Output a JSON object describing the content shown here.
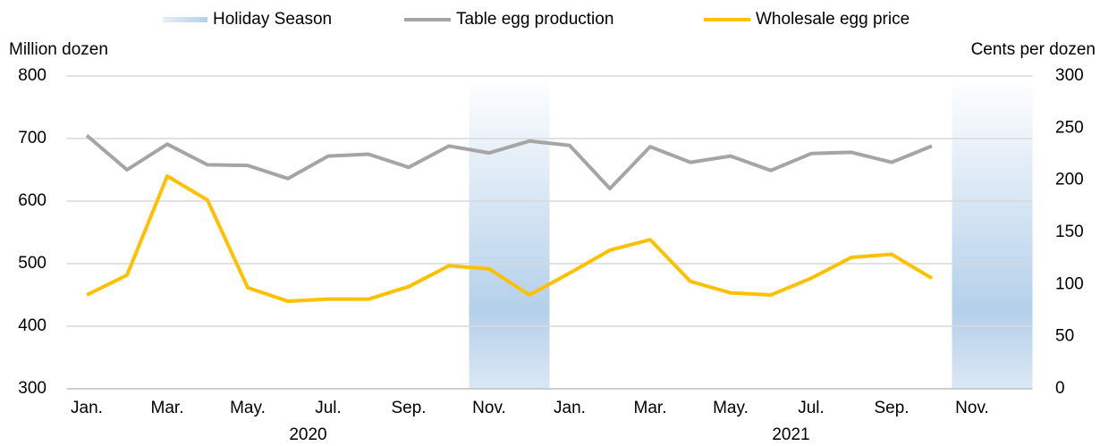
{
  "chart_data": {
    "type": "line",
    "y_label": "Million dozen",
    "y2_label": "Cents per dozen",
    "categories": [
      "Jan.",
      null,
      "Mar.",
      null,
      "May.",
      null,
      "Jul.",
      null,
      "Sep.",
      null,
      "Nov.",
      null,
      "Jan.",
      null,
      "Mar.",
      null,
      "May.",
      null,
      "Jul.",
      null,
      "Sep.",
      null,
      "Nov.",
      null
    ],
    "years": [
      "2020",
      "2021"
    ],
    "shade_name": "Holiday Season",
    "shaded_periods": [
      {
        "start": 10,
        "end": 11
      },
      {
        "start": 22,
        "end": 23
      }
    ],
    "series": [
      {
        "name": "Table egg production",
        "color": "#a5a5a5",
        "axis": "y",
        "values": [
          705,
          650,
          691,
          658,
          657,
          636,
          672,
          675,
          654,
          688,
          677,
          696,
          689,
          620,
          687,
          662,
          672,
          649,
          676,
          678,
          662,
          688,
          null,
          null
        ]
      },
      {
        "name": "Wholesale egg price",
        "color": "#ffc000",
        "axis": "y2",
        "values": [
          90,
          109,
          204,
          181,
          97,
          84,
          86,
          86,
          98,
          118,
          115,
          90,
          111,
          133,
          143,
          103,
          92,
          90,
          106,
          126,
          129,
          106,
          null,
          null
        ]
      }
    ],
    "ylim": [
      300,
      800
    ],
    "yticks": [
      300,
      400,
      500,
      600,
      700,
      800
    ],
    "y2lim": [
      0,
      300
    ],
    "y2ticks": [
      0,
      50,
      100,
      150,
      200,
      250,
      300
    ],
    "grid": true
  }
}
